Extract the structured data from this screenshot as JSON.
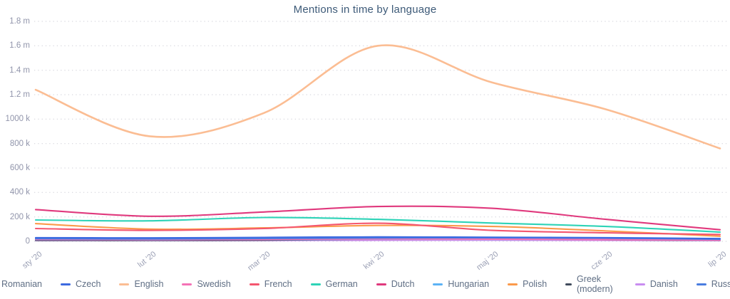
{
  "chart_data": {
    "type": "line",
    "title": "Mentions in time by language",
    "x": [
      "sty '20",
      "lut '20",
      "mar '20",
      "kwi '20",
      "maj '20",
      "cze '20",
      "lip '20"
    ],
    "y_axis": {
      "labels": [
        "1.8 m",
        "1.6 m",
        "1.4 m",
        "1.2 m",
        "1000 k",
        "800 k",
        "600 k",
        "400 k",
        "200 k",
        "0"
      ],
      "values_k": [
        1800,
        1600,
        1400,
        1200,
        1000,
        800,
        600,
        400,
        200,
        0
      ]
    },
    "ylim_k": [
      0,
      1800
    ],
    "grid": "dotted horizontal",
    "legend_position": "bottom",
    "series": [
      {
        "name": "Romanian",
        "color": "#c77fd9",
        "values_k": [
          10,
          9,
          11,
          14,
          16,
          12,
          8
        ]
      },
      {
        "name": "Czech",
        "color": "#3d6ae0",
        "values_k": [
          30,
          28,
          32,
          36,
          33,
          30,
          22
        ]
      },
      {
        "name": "English",
        "color": "#fbbd93",
        "values_k": [
          1240,
          860,
          1050,
          1600,
          1300,
          1080,
          760
        ]
      },
      {
        "name": "Swedish",
        "color": "#f472b6",
        "values_k": [
          16,
          14,
          16,
          20,
          18,
          14,
          10
        ]
      },
      {
        "name": "French",
        "color": "#f4566f",
        "values_k": [
          105,
          90,
          105,
          148,
          90,
          70,
          56
        ]
      },
      {
        "name": "German",
        "color": "#2ed3b7",
        "values_k": [
          175,
          168,
          195,
          180,
          150,
          122,
          76
        ]
      },
      {
        "name": "Dutch",
        "color": "#e0397d",
        "values_k": [
          260,
          205,
          240,
          285,
          270,
          180,
          95
        ]
      },
      {
        "name": "Hungarian",
        "color": "#5cb2f5",
        "values_k": [
          14,
          13,
          15,
          18,
          17,
          15,
          10
        ]
      },
      {
        "name": "Polish",
        "color": "#fb9a4b",
        "values_k": [
          145,
          100,
          110,
          130,
          122,
          85,
          42
        ]
      },
      {
        "name": "Greek (modern)",
        "color": "#414b5c",
        "values_k": [
          8,
          8,
          10,
          20,
          24,
          14,
          8
        ]
      },
      {
        "name": "Danish",
        "color": "#c98df0",
        "values_k": [
          6,
          6,
          7,
          9,
          10,
          8,
          5
        ]
      },
      {
        "name": "Russian",
        "color": "#4a7de0",
        "values_k": [
          22,
          20,
          24,
          28,
          30,
          26,
          18
        ]
      }
    ]
  }
}
